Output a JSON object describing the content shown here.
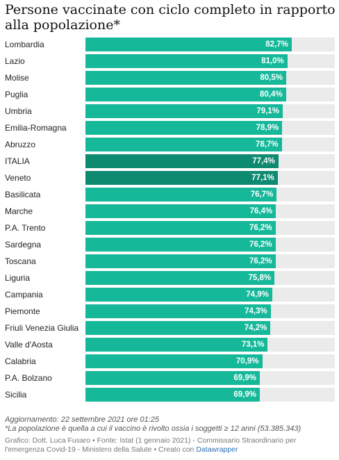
{
  "title": "Persone vaccinate con ciclo completo in rapporto alla popolazione*",
  "colors": {
    "bar": "#16b89a",
    "highlight": "#0e8a70",
    "track": "#ebebeb"
  },
  "chart_data": {
    "type": "bar",
    "orientation": "horizontal",
    "xlim": [
      0,
      100
    ],
    "highlighted": [
      "ITALIA",
      "Veneto"
    ],
    "categories": [
      "Lombardia",
      "Lazio",
      "Molise",
      "Puglia",
      "Umbria",
      "Emilia-Romagna",
      "Abruzzo",
      "ITALIA",
      "Veneto",
      "Basilicata",
      "Marche",
      "P.A. Trento",
      "Sardegna",
      "Toscana",
      "Liguria",
      "Campania",
      "Piemonte",
      "Friuli Venezia Giulia",
      "Valle d'Aosta",
      "Calabria",
      "P.A. Bolzano",
      "Sicilia"
    ],
    "values": [
      82.7,
      81.0,
      80.5,
      80.4,
      79.1,
      78.9,
      78.7,
      77.4,
      77.1,
      76.7,
      76.4,
      76.2,
      76.2,
      76.2,
      75.8,
      74.9,
      74.3,
      74.2,
      73.1,
      70.9,
      69.9,
      69.9
    ],
    "labels": [
      "82,7%",
      "81,0%",
      "80,5%",
      "80,4%",
      "79,1%",
      "78,9%",
      "78,7%",
      "77,4%",
      "77,1%",
      "76,7%",
      "76,4%",
      "76,2%",
      "76,2%",
      "76,2%",
      "75,8%",
      "74,9%",
      "74,3%",
      "74,2%",
      "73,1%",
      "70,9%",
      "69,9%",
      "69,9%"
    ]
  },
  "notes": {
    "updated": "Aggiornamento: 22 settembre 2021 ore 01:25",
    "footnote": "*La popolazione è quella a cui il vaccino è rivolto ossia i soggetti ≥ 12 anni (53.385.343)",
    "credit": "Grafico: Dott. Luca Fusaro • Fonte: Istat (1 gennaio 2021) - Commissario Straordinario per l'emergenza Covid-19 - Ministero della Salute • Creato con",
    "credit_link": "Datawrapper"
  }
}
